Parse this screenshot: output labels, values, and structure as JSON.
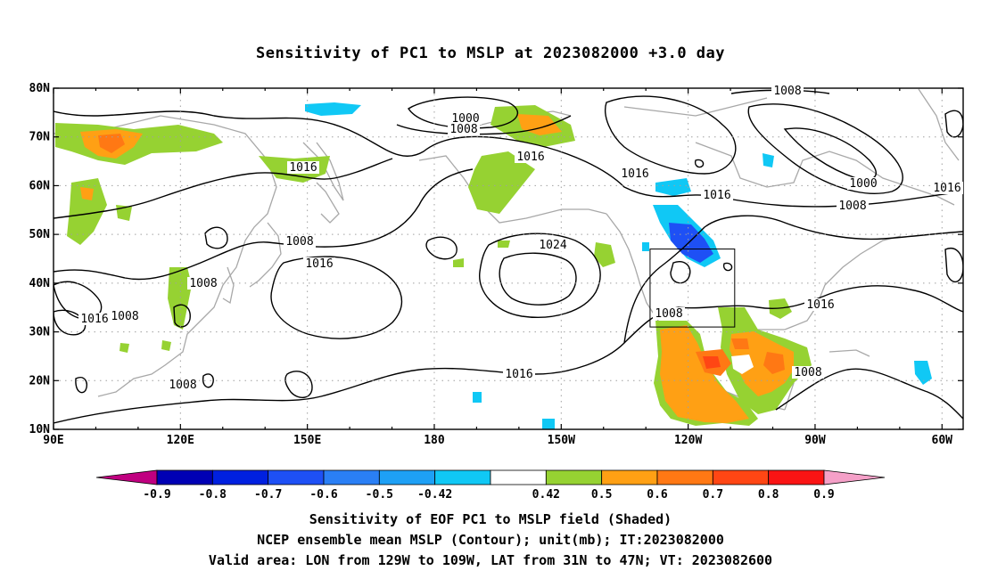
{
  "title": "Sensitivity of PC1 to MSLP at 2023082000 +3.0 day",
  "lat_ticks": [
    "80N",
    "70N",
    "60N",
    "50N",
    "40N",
    "30N",
    "20N",
    "10N"
  ],
  "lon_ticks": [
    "90E",
    "120E",
    "150E",
    "180",
    "150W",
    "120W",
    "90W",
    "60W"
  ],
  "isobar_labels": [
    "1000",
    "1008",
    "1016",
    "1016",
    "1016",
    "1016",
    "1016",
    "1008",
    "1008",
    "1008",
    "1000",
    "1024",
    "1008",
    "1016",
    "1016",
    "1008",
    "1016",
    "1008",
    "1008",
    "1016",
    "1008"
  ],
  "colorbar": {
    "labels": [
      "-0.9",
      "-0.8",
      "-0.7",
      "-0.6",
      "-0.5",
      "-0.42",
      "0.42",
      "0.5",
      "0.6",
      "0.7",
      "0.8",
      "0.9"
    ],
    "colors": [
      "#c00080",
      "#0000b4",
      "#0020e0",
      "#1e50f5",
      "#2a7ff5",
      "#1ea0f5",
      "#10c8f5",
      "#ffffff",
      "#96d232",
      "#ffa014",
      "#ff7814",
      "#ff4614",
      "#fa1414",
      "#f5a0c8"
    ]
  },
  "valid_box": {
    "lon": [
      -129,
      -109
    ],
    "lat": [
      31,
      47
    ]
  },
  "captions": [
    "Sensitivity of EOF PC1 to MSLP field (Shaded)",
    "NCEP ensemble mean MSLP (Contour); unit(mb); IT:2023082000",
    "Valid area: LON from 129W to 109W, LAT from 31N to 47N; VT: 2023082600"
  ]
}
